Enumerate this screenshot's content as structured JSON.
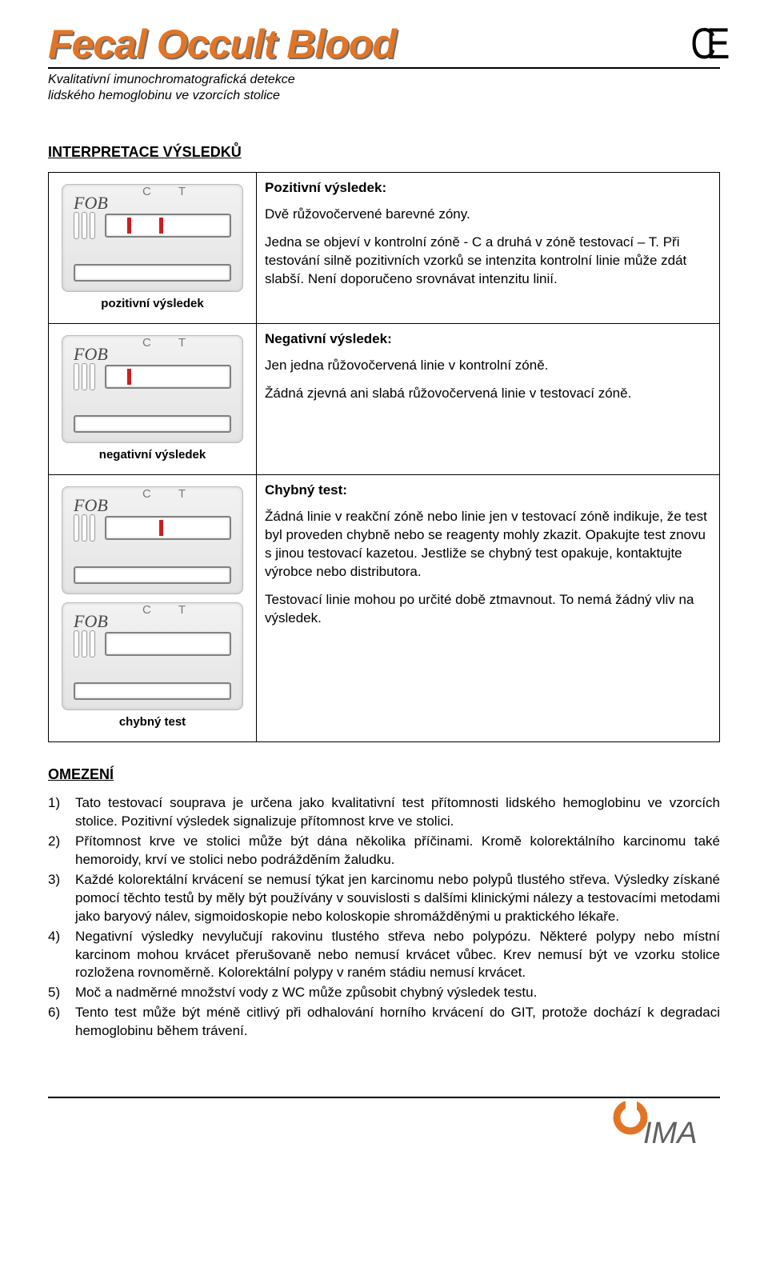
{
  "header": {
    "title": "Fecal Occult Blood",
    "title_color": "#e27525",
    "title_shadow": "#707070",
    "ce_mark": "CE",
    "subtitle_line1": "Kvalitativní imunochromatografická detekce",
    "subtitle_line2": "lidského hemoglobinu ve vzorcích stolice"
  },
  "section1_title": "INTERPRETACE VÝSLEDKŮ",
  "cassette": {
    "label": "FOB",
    "c_label": "C",
    "t_label": "T",
    "band_color": "#cc1e1e",
    "body_gradient_top": "#f2f2f2",
    "body_gradient_bottom": "#e4e4e4"
  },
  "results": [
    {
      "caption": "pozitivní výsledek",
      "show_c": true,
      "show_t": true,
      "second_cassette": false,
      "title": "Pozitivní výsledek:",
      "paragraphs": [
        "Dvě růžovočervené barevné zóny.",
        "Jedna se objeví v kontrolní zóně - C a druhá v zóně testovací – T. Při testování silně pozitivních vzorků se intenzita kontrolní linie může zdát slabší. Není doporučeno srovnávat intenzitu linií."
      ]
    },
    {
      "caption": "negativní výsledek",
      "show_c": true,
      "show_t": false,
      "second_cassette": false,
      "title": "Negativní výsledek:",
      "paragraphs": [
        "Jen jedna růžovočervená linie v kontrolní zóně.",
        "Žádná zjevná ani slabá růžovočervená linie v testovací zóně."
      ]
    },
    {
      "caption": "chybný test",
      "show_c": false,
      "show_t": true,
      "second_cassette": true,
      "second_show_c": false,
      "second_show_t": false,
      "title": "Chybný test:",
      "paragraphs": [
        "Žádná linie v reakční zóně nebo linie jen v testovací zóně indikuje, že test byl proveden chybně nebo se reagenty mohly zkazit. Opakujte test znovu s jinou testovací kazetou. Jestliže se chybný test opakuje, kontaktujte výrobce nebo distributora.",
        "Testovací linie mohou po určité době ztmavnout. To nemá žádný vliv na výsledek."
      ]
    }
  ],
  "section2_title": "OMEZENÍ",
  "limitations": [
    "Tato testovací souprava je určena jako kvalitativní test přítomnosti lidského hemoglobinu ve vzorcích stolice. Pozitivní výsledek signalizuje přítomnost krve ve stolici.",
    "Přítomnost krve ve stolici může být dána několika příčinami. Kromě kolorektálního karcinomu také hemoroidy, krví ve stolici nebo podrážděním žaludku.",
    "Každé kolorektální krvácení se nemusí týkat jen karcinomu nebo polypů tlustého střeva. Výsledky získané pomocí těchto testů by měly být používány v souvislosti s dalšími klinickými nálezy a testovacími metodami jako baryový nálev, sigmoidoskopie nebo koloskopie shromážděnými u praktického lékaře.",
    "Negativní výsledky nevylučují rakovinu tlustého střeva nebo polypózu. Některé polypy nebo místní karcinom mohou krvácet přerušovaně nebo nemusí krvácet vůbec. Krev nemusí být ve vzorku stolice rozložena rovnoměrně. Kolorektální polypy v raném stádiu nemusí krvácet.",
    "Moč a nadměrné množství vody z WC může způsobit chybný výsledek testu.",
    "Tento test může být méně citlivý při odhalování horního krvácení do GIT, protože dochází k degradaci hemoglobinu během trávení."
  ],
  "footer_logo": {
    "text": "IMA",
    "accent_color": "#e27525",
    "text_color": "#606060"
  }
}
